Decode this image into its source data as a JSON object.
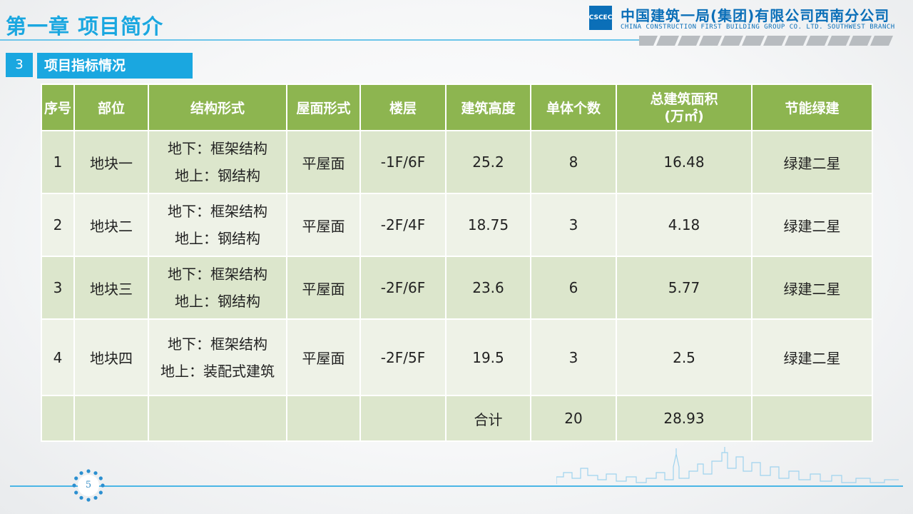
{
  "header": {
    "chapter_title": "第一章  项目简介",
    "logo_mark": "CSCEC",
    "logo_cn": "中国建筑一局(集团)有限公司西南分公司",
    "logo_en": "CHINA CONSTRUCTION FIRST BUILDING GROUP CO. LTD. SOUTHWEST BRANCH"
  },
  "section": {
    "number": "3",
    "label": "项目指标情况"
  },
  "table": {
    "headers": [
      "序号",
      "部位",
      "结构形式",
      "屋面形式",
      "楼层",
      "建筑高度",
      "单体个数",
      "总建筑面积",
      "(万㎡)",
      "节能绿建"
    ],
    "rows": [
      {
        "no": "1",
        "part": "地块一",
        "struct1": "地下：框架结构",
        "struct2": "地上：钢结构",
        "roof": "平屋面",
        "floors": "-1F/6F",
        "height": "25.2",
        "count": "8",
        "area": "16.48",
        "green": "绿建二星"
      },
      {
        "no": "2",
        "part": "地块二",
        "struct1": "地下：框架结构",
        "struct2": "地上：钢结构",
        "roof": "平屋面",
        "floors": "-2F/4F",
        "height": "18.75",
        "count": "3",
        "area": "4.18",
        "green": "绿建二星"
      },
      {
        "no": "3",
        "part": "地块三",
        "struct1": "地下：框架结构",
        "struct2": "地上：钢结构",
        "roof": "平屋面",
        "floors": "-2F/6F",
        "height": "23.6",
        "count": "6",
        "area": "5.77",
        "green": "绿建二星"
      },
      {
        "no": "4",
        "part": "地块四",
        "struct1": "地下：框架结构",
        "struct2": "地上：装配式建筑",
        "roof": "平屋面",
        "floors": "-2F/5F",
        "height": "19.5",
        "count": "3",
        "area": "2.5",
        "green": "绿建二星"
      }
    ],
    "total": {
      "label": "合计",
      "count": "20",
      "area": "28.93"
    }
  },
  "footer": {
    "page": "5"
  },
  "colors": {
    "accent": "#1aa7e0",
    "header_green": "#8db550",
    "row_dark": "#dce6cc",
    "row_light": "#eef2e7",
    "brand_blue": "#0b6fb8"
  }
}
